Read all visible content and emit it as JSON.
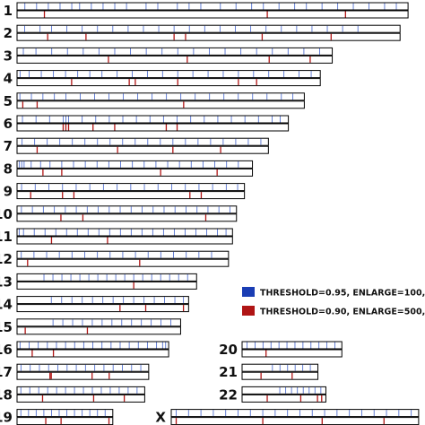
{
  "legend": [
    {
      "label": "THRESHOLD=0.95, ENLARGE=100,000",
      "color": "#1a3db4"
    },
    {
      "label": "THRESHOLD=0.90, ENLARGE=500,000",
      "color": "#b01515"
    }
  ],
  "chromosomes": [
    {
      "label": "1",
      "relLength": 0.98,
      "blue": [
        0.02,
        0.05,
        0.08,
        0.11,
        0.14,
        0.16,
        0.19,
        0.22,
        0.25,
        0.28,
        0.33,
        0.36,
        0.41,
        0.44,
        0.47,
        0.52,
        0.56,
        0.6,
        0.63,
        0.67,
        0.71,
        0.74,
        0.78,
        0.82,
        0.86,
        0.9,
        0.94,
        0.97
      ],
      "red": [
        0.07,
        0.64,
        0.84
      ]
    },
    {
      "label": "2",
      "relLength": 0.96,
      "blue": [
        0.02,
        0.06,
        0.09,
        0.13,
        0.17,
        0.21,
        0.25,
        0.29,
        0.33,
        0.37,
        0.41,
        0.45,
        0.49,
        0.53,
        0.57,
        0.61,
        0.65,
        0.69,
        0.73,
        0.77,
        0.81,
        0.85,
        0.89
      ],
      "red": [
        0.08,
        0.18,
        0.41,
        0.44,
        0.64,
        0.82
      ]
    },
    {
      "label": "3",
      "relLength": 0.79,
      "blue": [
        0.02,
        0.06,
        0.11,
        0.16,
        0.21,
        0.26,
        0.31,
        0.36,
        0.41,
        0.46,
        0.51,
        0.56,
        0.61,
        0.66,
        0.71,
        0.76,
        0.81,
        0.86,
        0.91,
        0.96
      ],
      "red": [
        0.29,
        0.54,
        0.8,
        0.93
      ]
    },
    {
      "label": "4",
      "relLength": 0.76,
      "blue": [
        0.01,
        0.04,
        0.08,
        0.12,
        0.16,
        0.2,
        0.24,
        0.28,
        0.33,
        0.38,
        0.43,
        0.48,
        0.53,
        0.58,
        0.63,
        0.68,
        0.73,
        0.78,
        0.83,
        0.88,
        0.93,
        0.97
      ],
      "red": [
        0.18,
        0.37,
        0.39,
        0.53,
        0.73,
        0.79
      ]
    },
    {
      "label": "5",
      "relLength": 0.72,
      "blue": [
        0.01,
        0.05,
        0.09,
        0.13,
        0.17,
        0.22,
        0.27,
        0.32,
        0.37,
        0.42,
        0.47,
        0.52,
        0.57,
        0.62,
        0.67,
        0.72,
        0.77,
        0.82,
        0.87,
        0.92,
        0.96
      ],
      "red": [
        0.02,
        0.07,
        0.58
      ]
    },
    {
      "label": "6",
      "relLength": 0.68,
      "blue": [
        0.02,
        0.07,
        0.12,
        0.17,
        0.18,
        0.19,
        0.24,
        0.29,
        0.34,
        0.39,
        0.44,
        0.49,
        0.54,
        0.59,
        0.64,
        0.69,
        0.74,
        0.79,
        0.84,
        0.89,
        0.94,
        0.97
      ],
      "red": [
        0.17,
        0.18,
        0.19,
        0.28,
        0.36,
        0.55,
        0.59
      ]
    },
    {
      "label": "7",
      "relLength": 0.63,
      "blue": [
        0.02,
        0.07,
        0.12,
        0.17,
        0.22,
        0.27,
        0.32,
        0.37,
        0.42,
        0.47,
        0.52,
        0.57,
        0.62,
        0.67,
        0.72,
        0.77,
        0.82,
        0.87,
        0.92,
        0.97
      ],
      "red": [
        0.08,
        0.4,
        0.62,
        0.81
      ]
    },
    {
      "label": "8",
      "relLength": 0.59,
      "blue": [
        0.01,
        0.02,
        0.03,
        0.06,
        0.1,
        0.14,
        0.19,
        0.24,
        0.29,
        0.34,
        0.39,
        0.44,
        0.49,
        0.54,
        0.59,
        0.64,
        0.69,
        0.74,
        0.79,
        0.84,
        0.89,
        0.94
      ],
      "red": [
        0.11,
        0.19,
        0.61,
        0.85
      ]
    },
    {
      "label": "9",
      "relLength": 0.57,
      "blue": [
        0.02,
        0.08,
        0.14,
        0.2,
        0.26,
        0.32,
        0.38,
        0.44,
        0.5,
        0.56,
        0.62,
        0.68,
        0.74,
        0.8,
        0.86,
        0.92,
        0.97
      ],
      "red": [
        0.06,
        0.2,
        0.25,
        0.76,
        0.81
      ]
    },
    {
      "label": "10",
      "relLength": 0.55,
      "blue": [
        0.02,
        0.07,
        0.12,
        0.17,
        0.22,
        0.27,
        0.32,
        0.37,
        0.42,
        0.47,
        0.52,
        0.57,
        0.62,
        0.67,
        0.72,
        0.77,
        0.82,
        0.87,
        0.92,
        0.97
      ],
      "red": [
        0.2,
        0.3,
        0.86
      ]
    },
    {
      "label": "11",
      "relLength": 0.54,
      "blue": [
        0.01,
        0.03,
        0.08,
        0.13,
        0.18,
        0.23,
        0.28,
        0.33,
        0.38,
        0.43,
        0.48,
        0.53,
        0.58,
        0.63,
        0.68,
        0.73,
        0.78,
        0.83,
        0.88,
        0.93,
        0.97
      ],
      "red": [
        0.16,
        0.42
      ]
    },
    {
      "label": "12",
      "relLength": 0.53,
      "blue": [
        0.02,
        0.08,
        0.14,
        0.2,
        0.26,
        0.32,
        0.38,
        0.44,
        0.5,
        0.56,
        0.62,
        0.68,
        0.74,
        0.8,
        0.86,
        0.92
      ],
      "red": [
        0.05,
        0.58
      ]
    },
    {
      "label": "13",
      "relLength": 0.45,
      "blue": [
        0.15,
        0.2,
        0.25,
        0.3,
        0.35,
        0.4,
        0.45,
        0.5,
        0.55,
        0.6,
        0.65,
        0.7,
        0.75,
        0.8,
        0.85,
        0.9,
        0.95
      ],
      "red": [
        0.65
      ]
    },
    {
      "label": "14",
      "relLength": 0.43,
      "blue": [
        0.2,
        0.26,
        0.32,
        0.38,
        0.44,
        0.5,
        0.56,
        0.62,
        0.68,
        0.74,
        0.8,
        0.86,
        0.92,
        0.97
      ],
      "red": [
        0.6,
        0.75,
        0.97
      ]
    },
    {
      "label": "15",
      "relLength": 0.41,
      "blue": [
        0.22,
        0.28,
        0.34,
        0.4,
        0.46,
        0.52,
        0.58,
        0.64,
        0.7,
        0.76,
        0.82,
        0.88,
        0.94
      ],
      "red": [
        0.05,
        0.43
      ]
    },
    {
      "label": "16",
      "relLength": 0.38,
      "blue": [
        0.02,
        0.08,
        0.14,
        0.2,
        0.26,
        0.32,
        0.38,
        0.44,
        0.5,
        0.56,
        0.62,
        0.68,
        0.74,
        0.8,
        0.86,
        0.92,
        0.96,
        0.98
      ],
      "red": [
        0.1,
        0.24
      ]
    },
    {
      "label": "17",
      "relLength": 0.33,
      "blue": [
        0.03,
        0.1,
        0.17,
        0.24,
        0.31,
        0.38,
        0.45,
        0.52,
        0.59,
        0.66,
        0.73,
        0.8,
        0.87,
        0.94
      ],
      "red": [
        0.25,
        0.26,
        0.57,
        0.7
      ]
    },
    {
      "label": "18",
      "relLength": 0.32,
      "blue": [
        0.03,
        0.1,
        0.17,
        0.24,
        0.31,
        0.38,
        0.45,
        0.52,
        0.59,
        0.66,
        0.73,
        0.8,
        0.87,
        0.94
      ],
      "red": [
        0.2,
        0.6,
        0.84
      ]
    },
    {
      "label": "19",
      "relLength": 0.24,
      "blue": [
        0.04,
        0.12,
        0.2,
        0.28,
        0.36,
        0.44,
        0.52,
        0.6,
        0.68,
        0.76,
        0.84,
        0.92
      ],
      "red": [
        0.3,
        0.46,
        0.96
      ]
    },
    {
      "label": "20",
      "relLength": 0.25,
      "blue": [
        0.05,
        0.13,
        0.21,
        0.29,
        0.37,
        0.45,
        0.53,
        0.61,
        0.69,
        0.77,
        0.85,
        0.93
      ],
      "red": [
        0.24
      ]
    },
    {
      "label": "21",
      "relLength": 0.19,
      "blue": [
        0.4,
        0.5,
        0.6,
        0.7,
        0.8,
        0.9
      ],
      "red": [
        0.25,
        0.66
      ]
    },
    {
      "label": "22",
      "relLength": 0.21,
      "blue": [
        0.45,
        0.52,
        0.59,
        0.66,
        0.73,
        0.8,
        0.87,
        0.94
      ],
      "red": [
        0.3,
        0.7,
        0.9,
        0.95
      ]
    },
    {
      "label": "X",
      "relLength": 0.62,
      "blue": [
        0.02,
        0.07,
        0.12,
        0.17,
        0.22,
        0.27,
        0.32,
        0.37,
        0.42,
        0.47,
        0.52,
        0.57,
        0.62,
        0.67,
        0.72,
        0.77,
        0.82,
        0.87,
        0.92,
        0.97
      ],
      "red": [
        0.02,
        0.37,
        0.61,
        0.86
      ]
    }
  ]
}
